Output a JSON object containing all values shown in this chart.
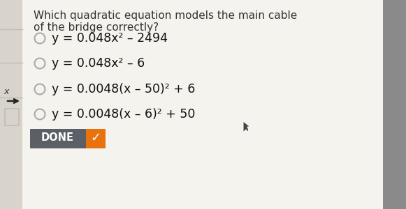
{
  "title_line1": "Which quadratic equation models the main cable",
  "title_line2": "of the bridge correctly?",
  "options": [
    "y = 0.048x² – 2494",
    "y = 0.048x² – 6",
    "y = 0.0048(x – 50)² + 6",
    "y = 0.0048(x – 6)² + 50"
  ],
  "done_label": "DONE",
  "bg_color": "#e8e4dc",
  "panel_color": "#f5f3ee",
  "right_panel_color": "#888888",
  "done_gray": "#5a6065",
  "done_orange": "#e8720c",
  "done_text_color": "#ffffff",
  "title_fontsize": 11.0,
  "option_fontsize": 12.5,
  "radio_color": "#aaaaaa",
  "left_strip_color": "#d8d4cc",
  "left_strip_dark": "#c0bdb5",
  "arrow_color": "#222222",
  "text_color": "#333333"
}
